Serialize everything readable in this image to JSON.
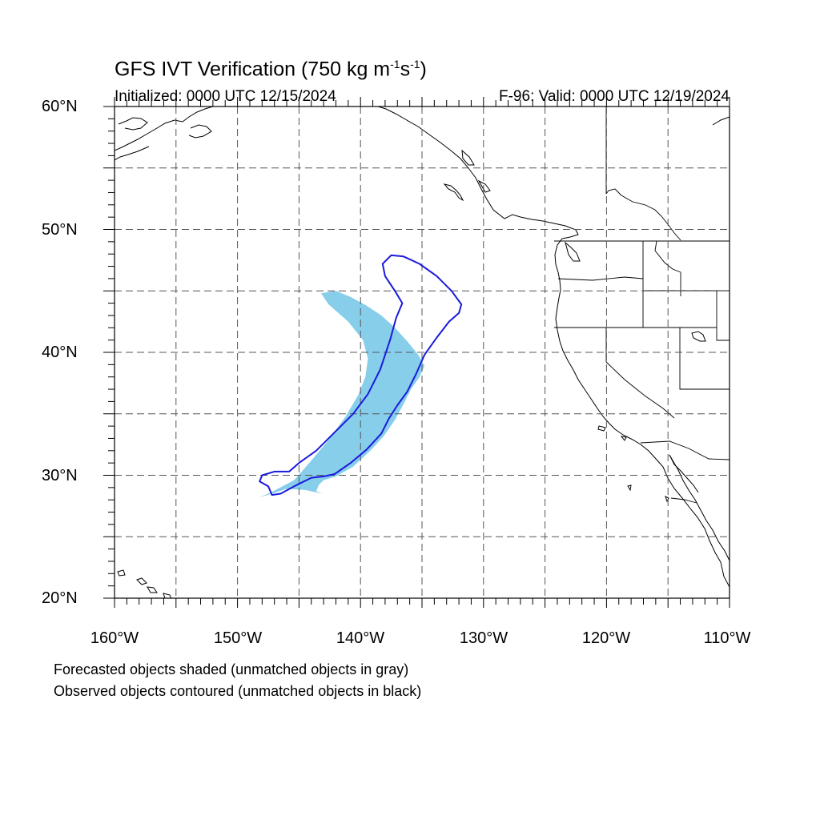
{
  "figure": {
    "title_main": "GFS IVT Verification (750 kg m",
    "title_exp1": "-1",
    "title_mid": "s",
    "title_exp2": "-1",
    "title_end": ")",
    "initialized": "Initialized: 0000 UTC 12/15/2024",
    "valid": "F-96: Valid: 0000 UTC 12/19/2024",
    "note_forecast": "Forecasted objects shaded (unmatched objects in gray)",
    "note_observed": "Observed objects contoured (unmatched objects in black)"
  },
  "axes": {
    "lat_labels": [
      "60°N",
      "50°N",
      "40°N",
      "30°N",
      "20°N"
    ],
    "lon_labels": [
      "160°W",
      "150°W",
      "140°W",
      "130°W",
      "120°W",
      "110°W"
    ],
    "lat_range": [
      20,
      60
    ],
    "lon_range": [
      -160,
      -110
    ],
    "grid": "dashed, every 5 degrees"
  },
  "colors": {
    "forecast_fill": "#87ceeb",
    "observed_contour": "#1a1adc",
    "coastline": "#000000",
    "grid": "#555555"
  },
  "map_data": {
    "forecast_object": {
      "status": "matched",
      "outline": [
        [
          -143.2,
          44.8
        ],
        [
          -142.0,
          45.0
        ],
        [
          -140.8,
          44.5
        ],
        [
          -139.5,
          43.8
        ],
        [
          -138.3,
          43.0
        ],
        [
          -137.2,
          42.0
        ],
        [
          -136.2,
          40.9
        ],
        [
          -135.3,
          39.8
        ],
        [
          -134.8,
          38.9
        ],
        [
          -135.2,
          38.0
        ],
        [
          -135.9,
          37.0
        ],
        [
          -136.5,
          35.8
        ],
        [
          -137.2,
          34.5
        ],
        [
          -138.1,
          33.2
        ],
        [
          -139.2,
          32.0
        ],
        [
          -140.6,
          30.7
        ],
        [
          -142.0,
          29.9
        ],
        [
          -143.0,
          29.6
        ],
        [
          -143.4,
          29.2
        ],
        [
          -143.6,
          28.7
        ],
        [
          -143.1,
          28.5
        ],
        [
          -144.5,
          28.8
        ],
        [
          -146.0,
          28.9
        ],
        [
          -147.2,
          28.5
        ],
        [
          -148.2,
          28.2
        ],
        [
          -147.3,
          28.6
        ],
        [
          -145.4,
          29.6
        ],
        [
          -144.0,
          31.2
        ],
        [
          -142.5,
          33.0
        ],
        [
          -141.2,
          34.8
        ],
        [
          -140.2,
          36.5
        ],
        [
          -139.6,
          38.0
        ],
        [
          -139.4,
          39.5
        ],
        [
          -139.8,
          41.0
        ],
        [
          -141.0,
          42.5
        ],
        [
          -142.6,
          43.9
        ]
      ]
    },
    "observed_object": {
      "status": "matched",
      "outline": [
        [
          -137.5,
          47.9
        ],
        [
          -136.5,
          47.8
        ],
        [
          -135.2,
          47.2
        ],
        [
          -133.8,
          46.2
        ],
        [
          -132.6,
          45.0
        ],
        [
          -131.8,
          43.9
        ],
        [
          -132.0,
          43.2
        ],
        [
          -132.8,
          42.5
        ],
        [
          -133.8,
          41.2
        ],
        [
          -134.8,
          39.8
        ],
        [
          -135.5,
          38.2
        ],
        [
          -136.2,
          36.8
        ],
        [
          -137.0,
          35.7
        ],
        [
          -137.7,
          34.6
        ],
        [
          -138.3,
          33.4
        ],
        [
          -139.5,
          32.1
        ],
        [
          -140.8,
          31.0
        ],
        [
          -142.1,
          30.1
        ],
        [
          -143.0,
          29.9
        ],
        [
          -144.0,
          29.8
        ],
        [
          -145.2,
          29.2
        ],
        [
          -146.5,
          28.5
        ],
        [
          -147.2,
          28.4
        ],
        [
          -147.5,
          29.1
        ],
        [
          -148.2,
          29.5
        ],
        [
          -148.0,
          30.0
        ],
        [
          -147.0,
          30.3
        ],
        [
          -145.8,
          30.3
        ],
        [
          -145.0,
          31.0
        ],
        [
          -143.6,
          32.0
        ],
        [
          -142.2,
          33.4
        ],
        [
          -140.6,
          35.0
        ],
        [
          -139.4,
          36.6
        ],
        [
          -138.4,
          38.6
        ],
        [
          -137.6,
          41.0
        ],
        [
          -137.1,
          42.8
        ],
        [
          -136.6,
          44.0
        ],
        [
          -137.2,
          45.0
        ],
        [
          -138.0,
          46.2
        ],
        [
          -138.2,
          47.2
        ]
      ]
    }
  }
}
